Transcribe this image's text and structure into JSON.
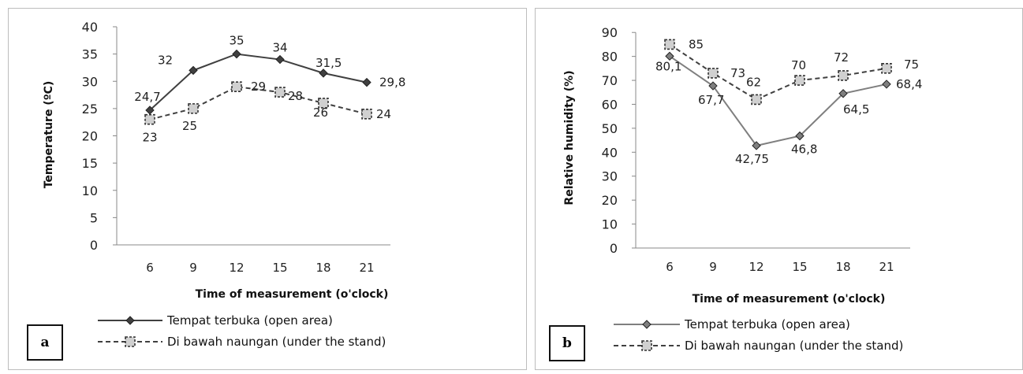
{
  "panels": [
    {
      "letter": "a"
    },
    {
      "letter": "b"
    }
  ],
  "chart_data": [
    {
      "type": "line",
      "ylabel": "Temperature (ºC)",
      "xlabel": "Time of measurement  (o'clock)",
      "x": [
        "6",
        "9",
        "12",
        "15",
        "18",
        "21"
      ],
      "ylim": [
        0,
        40
      ],
      "yticks": [
        "0",
        "5",
        "10",
        "15",
        "20",
        "25",
        "30",
        "35",
        "40"
      ],
      "grid": false,
      "legend_position": "bottom",
      "series": [
        {
          "name": "Tempat terbuka (open area)",
          "values": [
            24.7,
            32,
            35,
            34,
            31.5,
            29.8
          ],
          "labels": [
            "24,7",
            "32",
            "35",
            "34",
            "31,5",
            "29,8"
          ],
          "color": "#404040",
          "line_style": "solid",
          "marker": "diamond"
        },
        {
          "name": "Di bawah naungan (under the stand)",
          "values": [
            23,
            25,
            29,
            28,
            26,
            24
          ],
          "labels": [
            "23",
            "25",
            "29",
            "28",
            "26",
            "24"
          ],
          "color": "#404040",
          "line_style": "dashed",
          "marker": "square"
        }
      ]
    },
    {
      "type": "line",
      "ylabel": "Relative humidity (%)",
      "xlabel": "Time of measurement (o'clock)",
      "x": [
        "6",
        "9",
        "12",
        "15",
        "18",
        "21"
      ],
      "ylim": [
        0,
        90
      ],
      "yticks": [
        "0",
        "10",
        "20",
        "30",
        "40",
        "50",
        "60",
        "70",
        "80",
        "90"
      ],
      "grid": false,
      "legend_position": "bottom",
      "series": [
        {
          "name": "Tempat terbuka (open area)",
          "values": [
            80.1,
            67.7,
            42.75,
            46.8,
            64.5,
            68.4
          ],
          "labels": [
            "80,1",
            "67,7",
            "42,75",
            "46,8",
            "64,5",
            "68,4"
          ],
          "color": "#7f7f7f",
          "line_style": "solid",
          "marker": "diamond"
        },
        {
          "name": "Di bawah naungan (under the stand)",
          "values": [
            85,
            73,
            62,
            70,
            72,
            75
          ],
          "labels": [
            "85",
            "73",
            "62",
            "70",
            "72",
            "75"
          ],
          "color": "#404040",
          "line_style": "dashed",
          "marker": "square"
        }
      ]
    }
  ]
}
